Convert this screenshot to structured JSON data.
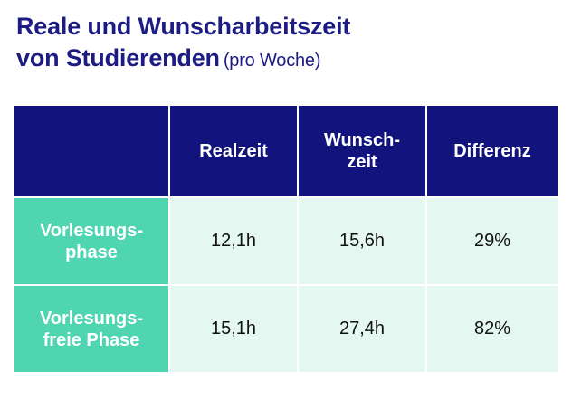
{
  "title": {
    "line1": "Reale und Wunscharbeitszeit",
    "line2": "von Studierenden",
    "subtitle": "(pro Woche)"
  },
  "chart_data": {
    "type": "table",
    "columns": [
      "",
      "Realzeit",
      "Wunsch-\nzeit",
      "Differenz"
    ],
    "rows": [
      {
        "label": "Vorlesungs-\nphase",
        "cells": [
          "12,1h",
          "15,6h",
          "29%"
        ],
        "realzeit": 12.1,
        "wunschzeit": 15.6,
        "differenz": 29
      },
      {
        "label": "Vorlesungs-\nfreie Phase",
        "cells": [
          "15,1h",
          "27,4h",
          "82%"
        ],
        "realzeit": 15.1,
        "wunschzeit": 27.4,
        "differenz": 82
      }
    ]
  },
  "colors": {
    "header_bg": "#13137d",
    "rowhead_bg": "#4fd6b0",
    "cell_bg": "#e4f8f1",
    "title_color": "#1c1c82"
  }
}
